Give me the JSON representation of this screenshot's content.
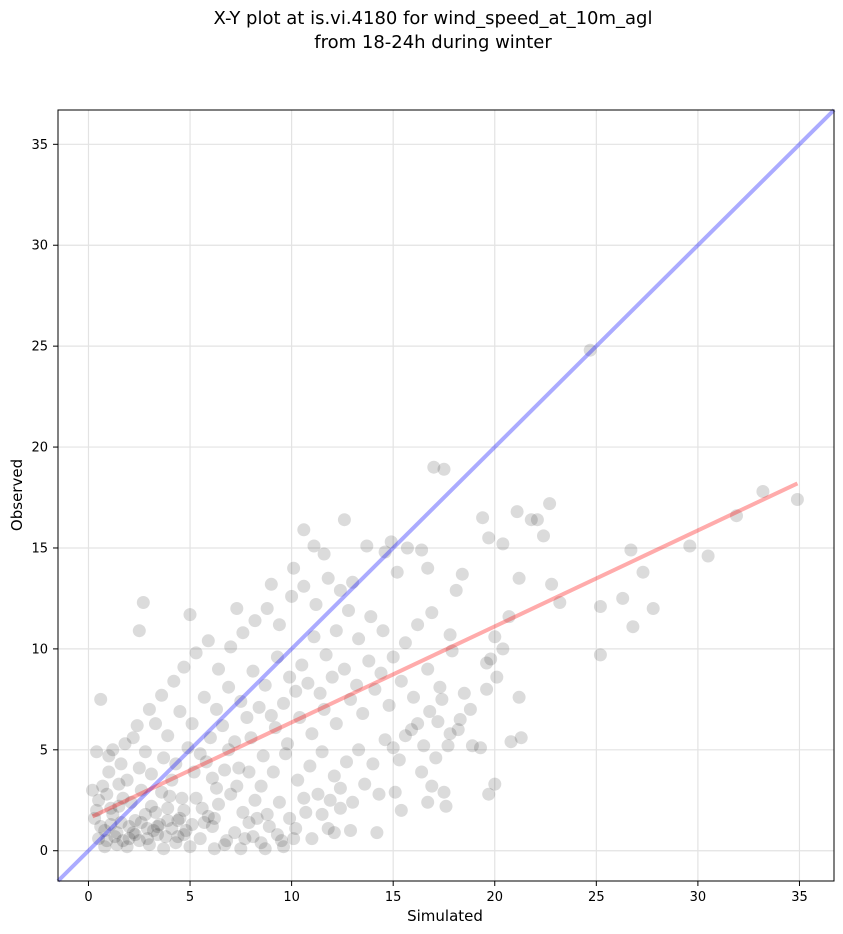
{
  "chart_data": {
    "type": "scatter",
    "title": [
      "X-Y plot at is.vi.4180 for wind_speed_at_10m_agl",
      "from 18-24h during winter"
    ],
    "xlabel": "Simulated",
    "ylabel": "Observed",
    "xlim": [
      -1.5,
      36.7
    ],
    "ylim": [
      -1.5,
      36.7
    ],
    "xticks": [
      0,
      5,
      10,
      15,
      20,
      25,
      30,
      35
    ],
    "yticks": [
      0,
      5,
      10,
      15,
      20,
      25,
      30,
      35
    ],
    "grid": true,
    "colors": {
      "points": "#000000",
      "identity_line": "#0000ff",
      "fit_line": "#ff0000"
    },
    "identity_line": {
      "slope": 1,
      "intercept": 0
    },
    "fit_line": {
      "x": [
        0.2,
        34.9
      ],
      "y": [
        1.7,
        18.2
      ]
    },
    "points": [
      [
        0.6,
        7.5
      ],
      [
        2.7,
        12.3
      ],
      [
        2.5,
        10.9
      ],
      [
        1.2,
        5.0
      ],
      [
        0.4,
        4.9
      ],
      [
        0.7,
        3.2
      ],
      [
        1.1,
        2.1
      ],
      [
        1.6,
        1.4
      ],
      [
        2.2,
        0.9
      ],
      [
        0.9,
        0.5
      ],
      [
        1.4,
        0.3
      ],
      [
        2.0,
        0.6
      ],
      [
        2.9,
        1.1
      ],
      [
        3.4,
        0.8
      ],
      [
        3.9,
        1.5
      ],
      [
        4.3,
        0.4
      ],
      [
        4.8,
        1.0
      ],
      [
        5.5,
        0.6
      ],
      [
        6.1,
        1.2
      ],
      [
        6.7,
        0.3
      ],
      [
        7.2,
        0.9
      ],
      [
        7.9,
        1.4
      ],
      [
        8.5,
        0.4
      ],
      [
        9.3,
        0.8
      ],
      [
        9.9,
        1.6
      ],
      [
        3.1,
        2.2
      ],
      [
        3.6,
        2.9
      ],
      [
        4.1,
        3.5
      ],
      [
        4.6,
        2.6
      ],
      [
        5.2,
        3.9
      ],
      [
        5.8,
        4.4
      ],
      [
        6.3,
        3.1
      ],
      [
        6.9,
        5.0
      ],
      [
        7.4,
        4.1
      ],
      [
        8.0,
        5.6
      ],
      [
        8.6,
        4.7
      ],
      [
        9.2,
        6.1
      ],
      [
        9.8,
        5.3
      ],
      [
        10.4,
        6.6
      ],
      [
        11.0,
        5.8
      ],
      [
        11.6,
        7.0
      ],
      [
        12.2,
        6.3
      ],
      [
        12.9,
        7.5
      ],
      [
        13.5,
        6.8
      ],
      [
        14.1,
        8.0
      ],
      [
        14.8,
        7.2
      ],
      [
        15.4,
        8.4
      ],
      [
        16.0,
        7.6
      ],
      [
        16.7,
        9.0
      ],
      [
        17.3,
        8.1
      ],
      [
        1.8,
        5.3
      ],
      [
        2.4,
        6.2
      ],
      [
        3.0,
        7.0
      ],
      [
        3.6,
        7.7
      ],
      [
        4.2,
        8.4
      ],
      [
        4.7,
        9.1
      ],
      [
        5.3,
        9.8
      ],
      [
        5.9,
        10.4
      ],
      [
        6.4,
        9.0
      ],
      [
        7.0,
        10.1
      ],
      [
        7.6,
        10.8
      ],
      [
        8.2,
        11.4
      ],
      [
        8.8,
        12.0
      ],
      [
        9.4,
        11.2
      ],
      [
        10.0,
        12.6
      ],
      [
        10.6,
        13.1
      ],
      [
        11.2,
        12.2
      ],
      [
        11.8,
        13.5
      ],
      [
        12.4,
        12.9
      ],
      [
        13.0,
        13.3
      ],
      [
        5.0,
        11.7
      ],
      [
        7.3,
        12.0
      ],
      [
        9.0,
        13.2
      ],
      [
        10.1,
        14.0
      ],
      [
        10.6,
        15.9
      ],
      [
        11.1,
        15.1
      ],
      [
        11.6,
        14.7
      ],
      [
        12.6,
        16.4
      ],
      [
        13.7,
        15.1
      ],
      [
        14.6,
        14.8
      ],
      [
        14.9,
        15.3
      ],
      [
        15.2,
        13.8
      ],
      [
        15.7,
        15.0
      ],
      [
        16.4,
        14.9
      ],
      [
        16.7,
        14.0
      ],
      [
        17.0,
        19.0
      ],
      [
        17.5,
        18.9
      ],
      [
        18.1,
        12.9
      ],
      [
        18.4,
        13.7
      ],
      [
        19.4,
        16.5
      ],
      [
        19.7,
        15.5
      ],
      [
        20.4,
        15.2
      ],
      [
        21.1,
        16.8
      ],
      [
        21.8,
        16.4
      ],
      [
        22.1,
        16.4
      ],
      [
        22.7,
        17.2
      ],
      [
        22.4,
        15.6
      ],
      [
        21.2,
        13.5
      ],
      [
        22.8,
        13.2
      ],
      [
        23.2,
        12.3
      ],
      [
        20.7,
        11.6
      ],
      [
        20.0,
        10.6
      ],
      [
        20.4,
        10.0
      ],
      [
        19.8,
        9.5
      ],
      [
        20.1,
        8.6
      ],
      [
        19.6,
        8.0
      ],
      [
        18.8,
        7.0
      ],
      [
        18.2,
        6.0
      ],
      [
        17.7,
        5.2
      ],
      [
        17.1,
        4.6
      ],
      [
        16.4,
        3.9
      ],
      [
        16.9,
        3.2
      ],
      [
        17.5,
        2.9
      ],
      [
        17.6,
        2.2
      ],
      [
        16.7,
        2.4
      ],
      [
        15.4,
        2.0
      ],
      [
        15.1,
        2.9
      ],
      [
        14.2,
        0.9
      ],
      [
        12.9,
        1.0
      ],
      [
        11.8,
        1.1
      ],
      [
        12.4,
        2.1
      ],
      [
        11.3,
        2.8
      ],
      [
        10.7,
        1.9
      ],
      [
        10.1,
        0.6
      ],
      [
        9.6,
        0.2
      ],
      [
        8.8,
        1.8
      ],
      [
        8.2,
        2.5
      ],
      [
        7.6,
        1.9
      ],
      [
        7.0,
        2.8
      ],
      [
        6.4,
        2.3
      ],
      [
        5.9,
        1.7
      ],
      [
        5.3,
        2.6
      ],
      [
        4.7,
        2.0
      ],
      [
        4.0,
        2.7
      ],
      [
        3.3,
        1.9
      ],
      [
        2.6,
        3.0
      ],
      [
        2.1,
        2.4
      ],
      [
        1.5,
        3.3
      ],
      [
        1.0,
        3.9
      ],
      [
        0.5,
        2.5
      ],
      [
        0.3,
        1.6
      ],
      [
        0.8,
        1.0
      ],
      [
        1.3,
        0.7
      ],
      [
        1.9,
        0.2
      ],
      [
        2.5,
        0.5
      ],
      [
        3.0,
        0.3
      ],
      [
        3.7,
        0.1
      ],
      [
        4.4,
        0.7
      ],
      [
        5.0,
        0.2
      ],
      [
        5.7,
        1.4
      ],
      [
        6.2,
        0.1
      ],
      [
        6.8,
        0.5
      ],
      [
        7.5,
        0.1
      ],
      [
        8.1,
        0.7
      ],
      [
        8.7,
        0.1
      ],
      [
        9.5,
        0.5
      ],
      [
        10.2,
        1.1
      ],
      [
        11.0,
        0.6
      ],
      [
        11.5,
        1.8
      ],
      [
        12.1,
        0.9
      ],
      [
        24.7,
        24.8
      ],
      [
        25.2,
        12.1
      ],
      [
        25.2,
        9.7
      ],
      [
        26.3,
        12.5
      ],
      [
        26.7,
        14.9
      ],
      [
        26.8,
        11.1
      ],
      [
        27.3,
        13.8
      ],
      [
        27.8,
        12.0
      ],
      [
        29.6,
        15.1
      ],
      [
        30.5,
        14.6
      ],
      [
        31.9,
        16.6
      ],
      [
        33.2,
        17.8
      ],
      [
        34.9,
        17.4
      ],
      [
        20.8,
        5.4
      ],
      [
        21.3,
        5.6
      ],
      [
        19.7,
        2.8
      ],
      [
        20.0,
        3.3
      ],
      [
        21.2,
        7.6
      ],
      [
        19.6,
        9.3
      ],
      [
        17.9,
        9.9
      ],
      [
        18.5,
        7.8
      ],
      [
        17.8,
        10.7
      ],
      [
        16.9,
        11.8
      ],
      [
        16.2,
        11.2
      ],
      [
        15.6,
        10.3
      ],
      [
        15.0,
        9.6
      ],
      [
        14.5,
        10.9
      ],
      [
        13.9,
        11.6
      ],
      [
        13.3,
        10.5
      ],
      [
        12.8,
        11.9
      ],
      [
        12.2,
        10.9
      ],
      [
        11.7,
        9.7
      ],
      [
        11.1,
        10.6
      ],
      [
        10.5,
        9.2
      ],
      [
        9.9,
        8.6
      ],
      [
        9.3,
        9.6
      ],
      [
        8.7,
        8.2
      ],
      [
        8.1,
        8.9
      ],
      [
        7.5,
        7.4
      ],
      [
        6.9,
        8.1
      ],
      [
        6.3,
        7.0
      ],
      [
        5.7,
        7.6
      ],
      [
        5.1,
        6.3
      ],
      [
        4.5,
        6.9
      ],
      [
        3.9,
        5.7
      ],
      [
        3.3,
        6.3
      ],
      [
        2.8,
        4.9
      ],
      [
        2.2,
        5.6
      ],
      [
        1.6,
        4.3
      ],
      [
        1.0,
        4.7
      ],
      [
        6.0,
        5.6
      ],
      [
        6.6,
        6.2
      ],
      [
        7.2,
        5.4
      ],
      [
        7.8,
        6.6
      ],
      [
        8.4,
        7.1
      ],
      [
        9.0,
        6.7
      ],
      [
        9.6,
        7.3
      ],
      [
        10.2,
        7.9
      ],
      [
        10.8,
        8.3
      ],
      [
        11.4,
        7.8
      ],
      [
        12.0,
        8.6
      ],
      [
        12.6,
        9.0
      ],
      [
        13.2,
        8.2
      ],
      [
        13.8,
        9.4
      ],
      [
        14.4,
        8.8
      ],
      [
        15.0,
        5.1
      ],
      [
        15.6,
        5.7
      ],
      [
        16.2,
        6.3
      ],
      [
        16.8,
        6.9
      ],
      [
        17.4,
        7.5
      ],
      [
        13.3,
        5.0
      ],
      [
        12.7,
        4.4
      ],
      [
        12.1,
        3.7
      ],
      [
        11.5,
        4.9
      ],
      [
        10.9,
        4.2
      ],
      [
        10.3,
        3.5
      ],
      [
        9.7,
        4.8
      ],
      [
        9.1,
        3.9
      ],
      [
        8.5,
        3.2
      ],
      [
        7.9,
        3.9
      ],
      [
        7.3,
        3.2
      ],
      [
        6.7,
        4.0
      ],
      [
        6.1,
        3.6
      ],
      [
        5.5,
        4.8
      ],
      [
        4.9,
        5.1
      ],
      [
        4.3,
        4.3
      ],
      [
        3.7,
        4.6
      ],
      [
        3.1,
        3.8
      ],
      [
        2.5,
        4.1
      ],
      [
        1.9,
        3.5
      ],
      [
        1.2,
        1.8
      ],
      [
        1.7,
        2.6
      ],
      [
        2.3,
        1.5
      ],
      [
        2.8,
        1.8
      ],
      [
        3.4,
        1.2
      ],
      [
        3.9,
        2.1
      ],
      [
        4.5,
        1.6
      ],
      [
        5.1,
        1.3
      ],
      [
        5.6,
        2.1
      ],
      [
        6.2,
        1.6
      ],
      [
        0.5,
        0.6
      ],
      [
        0.8,
        0.2
      ],
      [
        1.1,
        1.3
      ],
      [
        1.4,
        0.9
      ],
      [
        1.7,
        0.5
      ],
      [
        2.0,
        1.2
      ],
      [
        2.3,
        0.8
      ],
      [
        2.6,
        1.4
      ],
      [
        2.9,
        0.6
      ],
      [
        3.2,
        1.0
      ],
      [
        3.5,
        1.3
      ],
      [
        3.8,
        0.7
      ],
      [
        4.1,
        1.1
      ],
      [
        4.4,
        1.5
      ],
      [
        4.7,
        0.8
      ],
      [
        0.2,
        3.0
      ],
      [
        0.4,
        2.0
      ],
      [
        0.6,
        1.2
      ],
      [
        0.9,
        2.8
      ],
      [
        1.5,
        2.2
      ],
      [
        14.0,
        4.3
      ],
      [
        14.6,
        5.5
      ],
      [
        15.3,
        4.5
      ],
      [
        15.9,
        6.0
      ],
      [
        16.5,
        5.2
      ],
      [
        17.2,
        6.4
      ],
      [
        17.8,
        5.8
      ],
      [
        18.3,
        6.5
      ],
      [
        18.9,
        5.2
      ],
      [
        19.3,
        5.1
      ],
      [
        13.6,
        3.3
      ],
      [
        14.3,
        2.8
      ],
      [
        13.0,
        2.4
      ],
      [
        12.4,
        3.1
      ],
      [
        11.9,
        2.5
      ],
      [
        10.6,
        2.6
      ],
      [
        9.4,
        2.4
      ],
      [
        8.9,
        1.2
      ],
      [
        8.3,
        1.6
      ],
      [
        7.7,
        0.6
      ]
    ]
  }
}
